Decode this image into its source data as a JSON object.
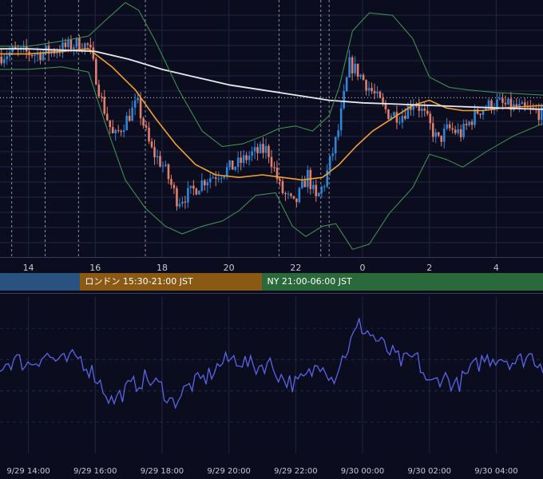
{
  "colors": {
    "background": "#0b0d1f",
    "grid": "#222540",
    "candle_up": "#2f86d8",
    "candle_down": "#e27e6a",
    "ma_fast": "#f0a030",
    "ma_slow": "#e8e8f0",
    "bollinger": "#3f9a55",
    "oscillator": "#5a64e8",
    "axis_text": "#c8c8d0",
    "session_tokyo": "#2a5280",
    "session_london": "#8a5a14",
    "session_ny": "#2a6a3a"
  },
  "chart_data": [
    {
      "type": "candlestick",
      "x_tick_labels": [
        "14",
        "16",
        "18",
        "20",
        "22",
        "0",
        "2",
        "4"
      ],
      "x_ticks_hours": [
        14,
        16,
        18,
        20,
        22,
        24,
        26,
        28
      ],
      "x_range_hours": [
        13.15,
        29.4
      ],
      "y_range": [
        0,
        100
      ],
      "reference_line_y": 62,
      "session_separators_hours": [
        13.5,
        14.5,
        15.5,
        17.5,
        21.5,
        22.75,
        23.0
      ],
      "candle_interval_min": 5,
      "price_anchors": [
        [
          13.15,
          78
        ],
        [
          13.6,
          80
        ],
        [
          14.3,
          79
        ],
        [
          15.0,
          81
        ],
        [
          15.5,
          83
        ],
        [
          15.85,
          82
        ],
        [
          16.25,
          60
        ],
        [
          16.6,
          46
        ],
        [
          16.9,
          52
        ],
        [
          17.3,
          60
        ],
        [
          17.7,
          42
        ],
        [
          18.1,
          35
        ],
        [
          18.5,
          22
        ],
        [
          18.9,
          25
        ],
        [
          19.3,
          30
        ],
        [
          19.8,
          33
        ],
        [
          20.3,
          36
        ],
        [
          20.7,
          40
        ],
        [
          21.2,
          42
        ],
        [
          21.6,
          26
        ],
        [
          22.0,
          20
        ],
        [
          22.4,
          32
        ],
        [
          22.65,
          22
        ],
        [
          22.9,
          29
        ],
        [
          23.3,
          48
        ],
        [
          23.65,
          75
        ],
        [
          23.9,
          72
        ],
        [
          24.4,
          63
        ],
        [
          24.8,
          56
        ],
        [
          25.2,
          55
        ],
        [
          25.6,
          61
        ],
        [
          25.9,
          55
        ],
        [
          26.3,
          45
        ],
        [
          26.6,
          50
        ],
        [
          27.0,
          48
        ],
        [
          27.5,
          57
        ],
        [
          28.0,
          60
        ],
        [
          28.6,
          58
        ],
        [
          29.4,
          56
        ]
      ],
      "series": [
        {
          "name": "",
          "role": "ma_fast",
          "points": [
            [
              13.15,
              79
            ],
            [
              14.0,
              79
            ],
            [
              15.0,
              80
            ],
            [
              15.8,
              81
            ],
            [
              16.5,
              74
            ],
            [
              17.2,
              65
            ],
            [
              17.8,
              54
            ],
            [
              18.4,
              44
            ],
            [
              19.0,
              36
            ],
            [
              19.6,
              32
            ],
            [
              20.3,
              31
            ],
            [
              21.0,
              32
            ],
            [
              21.6,
              31
            ],
            [
              22.2,
              30
            ],
            [
              22.8,
              31
            ],
            [
              23.3,
              36
            ],
            [
              23.8,
              43
            ],
            [
              24.3,
              49
            ],
            [
              24.9,
              54
            ],
            [
              25.5,
              59
            ],
            [
              26.0,
              61
            ],
            [
              26.5,
              58
            ],
            [
              27.0,
              57
            ],
            [
              27.6,
              57
            ],
            [
              28.2,
              58
            ],
            [
              29.4,
              59
            ]
          ]
        },
        {
          "name": "",
          "role": "ma_slow",
          "points": [
            [
              13.15,
              81
            ],
            [
              14.0,
              81
            ],
            [
              15.0,
              80.5
            ],
            [
              16.0,
              80
            ],
            [
              17.0,
              77
            ],
            [
              18.0,
              73
            ],
            [
              19.0,
              70
            ],
            [
              20.0,
              67
            ],
            [
              21.0,
              65
            ],
            [
              22.0,
              63
            ],
            [
              23.0,
              61
            ],
            [
              24.0,
              60
            ],
            [
              25.0,
              59.5
            ],
            [
              26.0,
              59
            ],
            [
              27.0,
              58.5
            ],
            [
              28.0,
              58
            ],
            [
              29.4,
              57.5
            ]
          ]
        },
        {
          "name": "",
          "role": "bb_upper",
          "points": [
            [
              13.15,
              82
            ],
            [
              14.0,
              82
            ],
            [
              15.0,
              84
            ],
            [
              15.8,
              86
            ],
            [
              16.3,
              92
            ],
            [
              16.9,
              99
            ],
            [
              17.3,
              96
            ],
            [
              17.8,
              84
            ],
            [
              18.5,
              65
            ],
            [
              19.2,
              49
            ],
            [
              19.8,
              43
            ],
            [
              20.4,
              44
            ],
            [
              21.0,
              47
            ],
            [
              21.5,
              50
            ],
            [
              22.0,
              51
            ],
            [
              22.5,
              49
            ],
            [
              23.0,
              55
            ],
            [
              23.3,
              66
            ],
            [
              23.7,
              88
            ],
            [
              24.2,
              95
            ],
            [
              24.9,
              94
            ],
            [
              25.5,
              85
            ],
            [
              26.0,
              70
            ],
            [
              26.6,
              66
            ],
            [
              27.2,
              65
            ],
            [
              28.0,
              64
            ],
            [
              29.4,
              63
            ]
          ]
        },
        {
          "name": "",
          "role": "bb_lower",
          "points": [
            [
              13.15,
              73
            ],
            [
              14.0,
              73
            ],
            [
              15.0,
              74
            ],
            [
              15.8,
              72
            ],
            [
              16.3,
              52
            ],
            [
              16.9,
              30
            ],
            [
              17.5,
              19
            ],
            [
              18.1,
              12
            ],
            [
              18.6,
              9
            ],
            [
              19.2,
              12
            ],
            [
              19.8,
              14
            ],
            [
              20.3,
              18
            ],
            [
              20.8,
              24
            ],
            [
              21.4,
              25
            ],
            [
              21.9,
              12
            ],
            [
              22.3,
              8
            ],
            [
              22.8,
              12
            ],
            [
              23.2,
              13
            ],
            [
              23.7,
              3
            ],
            [
              24.2,
              5
            ],
            [
              24.8,
              17
            ],
            [
              25.5,
              27
            ],
            [
              26.0,
              40
            ],
            [
              26.5,
              38
            ],
            [
              27.0,
              35
            ],
            [
              27.7,
              41
            ],
            [
              28.5,
              47
            ],
            [
              29.4,
              52
            ]
          ]
        }
      ]
    },
    {
      "type": "line",
      "name": "",
      "x_tick_labels": [
        "9/29 14:00",
        "9/29 16:00",
        "9/29 18:00",
        "9/29 20:00",
        "9/29 22:00",
        "9/30 00:00",
        "9/30 02:00",
        "9/30 04:00"
      ],
      "x_ticks_hours": [
        14,
        16,
        18,
        20,
        22,
        24,
        26,
        28
      ],
      "x_range_hours": [
        13.15,
        29.4
      ],
      "y_range": [
        0,
        100
      ],
      "gridlines_y": [
        20,
        40,
        60,
        80
      ],
      "anchors": [
        [
          13.15,
          56
        ],
        [
          13.6,
          60
        ],
        [
          14.0,
          57
        ],
        [
          14.5,
          63
        ],
        [
          15.0,
          58
        ],
        [
          15.5,
          62
        ],
        [
          16.0,
          50
        ],
        [
          16.5,
          33
        ],
        [
          17.0,
          42
        ],
        [
          17.5,
          48
        ],
        [
          18.0,
          42
        ],
        [
          18.3,
          32
        ],
        [
          18.8,
          43
        ],
        [
          19.3,
          48
        ],
        [
          19.8,
          58
        ],
        [
          20.2,
          61
        ],
        [
          20.8,
          55
        ],
        [
          21.2,
          58
        ],
        [
          21.6,
          48
        ],
        [
          22.0,
          44
        ],
        [
          22.4,
          50
        ],
        [
          22.8,
          60
        ],
        [
          23.1,
          47
        ],
        [
          23.5,
          65
        ],
        [
          23.9,
          82
        ],
        [
          24.2,
          77
        ],
        [
          24.8,
          65
        ],
        [
          25.2,
          58
        ],
        [
          25.6,
          62
        ],
        [
          26.0,
          43
        ],
        [
          26.4,
          50
        ],
        [
          26.8,
          43
        ],
        [
          27.2,
          52
        ],
        [
          27.6,
          60
        ],
        [
          28.1,
          62
        ],
        [
          28.6,
          58
        ],
        [
          29.0,
          63
        ],
        [
          29.4,
          57
        ]
      ]
    }
  ],
  "sessions": [
    {
      "label": "",
      "color": "#2a5280",
      "start_hours": 13.15,
      "end_hours": 15.55
    },
    {
      "label": "ロンドン 15:30-21:00 JST",
      "color": "#8a5a14",
      "start_hours": 15.55,
      "end_hours": 21.0
    },
    {
      "label": "NY 21:00-06:00 JST",
      "color": "#2a6a3a",
      "start_hours": 21.0,
      "end_hours": 29.4
    }
  ]
}
